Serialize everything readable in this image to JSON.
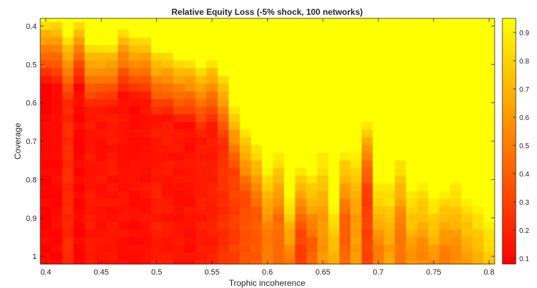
{
  "chart_data": {
    "type": "heatmap",
    "title": "Relative Equity Loss (-5% shock, 100 networks)",
    "xlabel": "Trophic incoherence",
    "ylabel": "Coverage",
    "x_range": [
      0.395,
      0.805
    ],
    "y_range": [
      0.38,
      1.02
    ],
    "y_reversed": true,
    "x_ticks": [
      {
        "value": 0.4,
        "label": "0.4"
      },
      {
        "value": 0.45,
        "label": "0.45"
      },
      {
        "value": 0.5,
        "label": "0.5"
      },
      {
        "value": 0.55,
        "label": "0.55"
      },
      {
        "value": 0.6,
        "label": "0.6"
      },
      {
        "value": 0.65,
        "label": "0.65"
      },
      {
        "value": 0.7,
        "label": "0.7"
      },
      {
        "value": 0.75,
        "label": "0.75"
      },
      {
        "value": 0.8,
        "label": "0.8"
      }
    ],
    "y_ticks": [
      {
        "value": 0.4,
        "label": "0.4"
      },
      {
        "value": 0.5,
        "label": "0.5"
      },
      {
        "value": 0.6,
        "label": "0.6"
      },
      {
        "value": 0.7,
        "label": "0.7"
      },
      {
        "value": 0.8,
        "label": "0.8"
      },
      {
        "value": 0.9,
        "label": "0.9"
      },
      {
        "value": 1.0,
        "label": "1"
      }
    ],
    "colorbar": {
      "colormap": "autumn",
      "range": [
        0.08,
        0.95
      ],
      "ticks": [
        {
          "value": 0.1,
          "label": "0.1"
        },
        {
          "value": 0.2,
          "label": "0.2"
        },
        {
          "value": 0.3,
          "label": "0.3"
        },
        {
          "value": 0.4,
          "label": "0.4"
        },
        {
          "value": 0.5,
          "label": "0.5"
        },
        {
          "value": 0.6,
          "label": "0.6"
        },
        {
          "value": 0.7,
          "label": "0.7"
        },
        {
          "value": 0.8,
          "label": "0.8"
        },
        {
          "value": 0.9,
          "label": "0.9"
        }
      ]
    },
    "grid": false,
    "trophic_incoherence": [
      0.4,
      0.41,
      0.42,
      0.43,
      0.44,
      0.45,
      0.46,
      0.47,
      0.48,
      0.49,
      0.5,
      0.51,
      0.52,
      0.53,
      0.54,
      0.55,
      0.56,
      0.57,
      0.58,
      0.59,
      0.6,
      0.61,
      0.62,
      0.63,
      0.64,
      0.65,
      0.66,
      0.67,
      0.68,
      0.69,
      0.7,
      0.71,
      0.72,
      0.73,
      0.74,
      0.75,
      0.76,
      0.77,
      0.78,
      0.79,
      0.8
    ],
    "coverage": [
      0.38,
      0.4,
      0.42,
      0.44,
      0.46,
      0.48,
      0.5,
      0.52,
      0.54,
      0.56,
      0.58,
      0.6,
      0.62,
      0.64,
      0.66,
      0.68,
      0.7,
      0.72,
      0.74,
      0.76,
      0.78,
      0.8,
      0.82,
      0.84,
      0.86,
      0.88,
      0.9,
      0.92,
      0.94,
      0.96,
      0.98,
      1.0,
      1.02
    ],
    "loss_onset_coverage": [
      0.38,
      0.38,
      0.42,
      0.38,
      0.44,
      0.44,
      0.44,
      0.4,
      0.42,
      0.42,
      0.46,
      0.46,
      0.48,
      0.48,
      0.5,
      0.48,
      0.52,
      0.6,
      0.66,
      0.7,
      0.76,
      0.72,
      0.84,
      0.76,
      0.78,
      0.72,
      0.86,
      0.72,
      0.72,
      0.64,
      0.8,
      0.8,
      0.74,
      0.82,
      0.8,
      0.84,
      0.82,
      0.8,
      0.84,
      0.86,
      0.9
    ],
    "loss_floor": [
      0.1,
      0.12,
      0.22,
      0.1,
      0.16,
      0.14,
      0.15,
      0.14,
      0.12,
      0.14,
      0.17,
      0.16,
      0.14,
      0.14,
      0.17,
      0.18,
      0.24,
      0.3,
      0.36,
      0.4,
      0.5,
      0.46,
      0.48,
      0.3,
      0.4,
      0.6,
      0.62,
      0.42,
      0.6,
      0.3,
      0.52,
      0.62,
      0.48,
      0.58,
      0.55,
      0.56,
      0.5,
      0.56,
      0.58,
      0.62,
      0.68
    ]
  }
}
